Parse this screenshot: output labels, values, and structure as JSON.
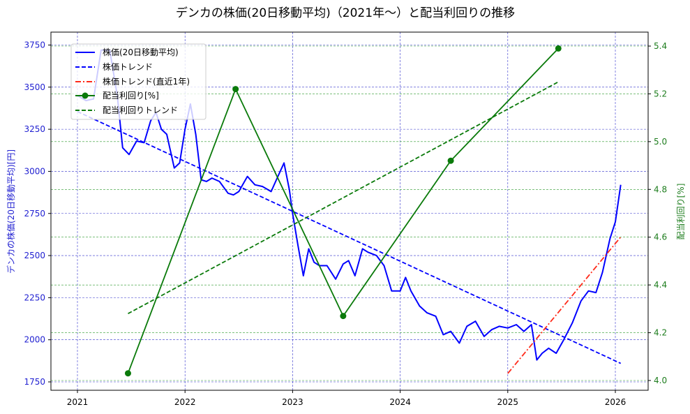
{
  "chart_data": {
    "type": "line",
    "title": "デンカの株価(20日移動平均)（2021年～）と配当利回りの推移",
    "xlabel": "",
    "ylabel_left": "デンカの株価(20日移動平均)[円]",
    "ylabel_right": "配当利回り[%]",
    "x_ticks": [
      "2021",
      "2022",
      "2023",
      "2024",
      "2025",
      "2026"
    ],
    "y_left_ticks": [
      1750,
      2000,
      2250,
      2500,
      2750,
      3000,
      3250,
      3500,
      3750
    ],
    "y_right_ticks": [
      "4.0",
      "4.2",
      "4.4",
      "4.6",
      "4.8",
      "5.0",
      "5.2",
      "5.4"
    ],
    "y_left_lim": [
      1700,
      3830
    ],
    "y_right_lim": [
      3.96,
      5.45
    ],
    "x_lim": [
      2020.75,
      2026.3
    ],
    "grid": true,
    "legend_position": "upper left",
    "legend": [
      {
        "label": "株価(20日移動平均)",
        "style": "solid",
        "color": "#0000ff"
      },
      {
        "label": "株価トレンド",
        "style": "dashed",
        "color": "#0000ff"
      },
      {
        "label": "株価トレンド(直近1年)",
        "style": "dashdot",
        "color": "#ff0000"
      },
      {
        "label": "配当利回り[%]",
        "style": "solid-marker",
        "color": "#008000"
      },
      {
        "label": "配当利回りトレンド",
        "style": "dashed",
        "color": "#008000"
      }
    ],
    "series": [
      {
        "name": "株価(20日移動平均)",
        "axis": "left",
        "color": "#0000ff",
        "x": [
          2021.0,
          2021.08,
          2021.15,
          2021.22,
          2021.3,
          2021.37,
          2021.42,
          2021.48,
          2021.55,
          2021.62,
          2021.68,
          2021.73,
          2021.78,
          2021.83,
          2021.9,
          2021.95,
          2022.0,
          2022.05,
          2022.1,
          2022.15,
          2022.2,
          2022.25,
          2022.32,
          2022.4,
          2022.45,
          2022.5,
          2022.58,
          2022.65,
          2022.72,
          2022.8,
          2022.87,
          2022.92,
          2022.97,
          2023.0,
          2023.05,
          2023.1,
          2023.15,
          2023.2,
          2023.25,
          2023.32,
          2023.4,
          2023.47,
          2023.52,
          2023.58,
          2023.65,
          2023.7,
          2023.78,
          2023.85,
          2023.92,
          2024.0,
          2024.05,
          2024.1,
          2024.18,
          2024.25,
          2024.33,
          2024.4,
          2024.47,
          2024.55,
          2024.62,
          2024.7,
          2024.78,
          2024.85,
          2024.92,
          2025.0,
          2025.08,
          2025.15,
          2025.22,
          2025.27,
          2025.32,
          2025.38,
          2025.45,
          2025.52,
          2025.6,
          2025.68,
          2025.75,
          2025.82,
          2025.88,
          2025.95,
          2026.0,
          2026.05
        ],
        "values": [
          3450,
          3420,
          3430,
          3720,
          3720,
          3450,
          3140,
          3100,
          3180,
          3170,
          3300,
          3350,
          3250,
          3220,
          3020,
          3050,
          3250,
          3400,
          3220,
          2950,
          2940,
          2960,
          2940,
          2870,
          2860,
          2880,
          2970,
          2920,
          2910,
          2880,
          2980,
          3050,
          2890,
          2750,
          2560,
          2380,
          2540,
          2460,
          2440,
          2440,
          2360,
          2450,
          2470,
          2380,
          2540,
          2520,
          2500,
          2440,
          2290,
          2290,
          2370,
          2290,
          2200,
          2160,
          2140,
          2030,
          2050,
          1980,
          2080,
          2110,
          2020,
          2060,
          2080,
          2070,
          2090,
          2050,
          2090,
          1880,
          1920,
          1950,
          1920,
          2000,
          2100,
          2230,
          2290,
          2280,
          2400,
          2600,
          2700,
          2920
        ]
      },
      {
        "name": "株価トレンド",
        "axis": "left",
        "color": "#0000ff",
        "x": [
          2021.0,
          2026.05
        ],
        "values": [
          3355,
          1860
        ]
      },
      {
        "name": "株価トレンド(直近1年)",
        "axis": "left",
        "color": "#ff0000",
        "x": [
          2025.0,
          2026.05
        ],
        "values": [
          1800,
          2610
        ]
      },
      {
        "name": "配当利回り[%]",
        "axis": "right",
        "color": "#008000",
        "x": [
          2021.47,
          2022.47,
          2023.47,
          2024.47,
          2025.47
        ],
        "values": [
          4.03,
          5.22,
          4.27,
          4.92,
          5.39
        ]
      },
      {
        "name": "配当利回りトレンド",
        "axis": "right",
        "color": "#008000",
        "x": [
          2021.47,
          2025.47
        ],
        "values": [
          4.28,
          5.25
        ]
      }
    ]
  },
  "colors": {
    "price": "#0000ff",
    "price_trend": "#0000ff",
    "price_trend_recent": "#ff2a1a",
    "yield": "#0a7a0a",
    "yield_trend": "#0a7a0a",
    "left_axis": "#1f1fd1",
    "right_axis": "#1e7d1e"
  }
}
